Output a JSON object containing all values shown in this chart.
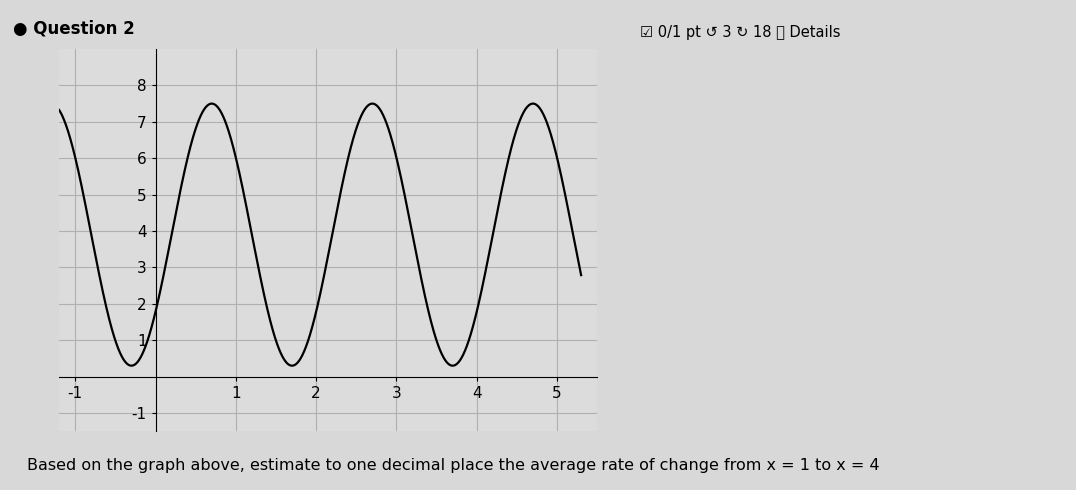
{
  "title": "Question 2",
  "question_text": "Based on the graph above, estimate to one decimal place the average rate of change from x = 1 to x = 4",
  "header_text": "☑ 0/1 pt ↺ 3 ↻ 18 ⓘ Details",
  "xlim": [
    -1.2,
    5.5
  ],
  "ylim": [
    -1.5,
    9
  ],
  "xticks": [
    -1,
    1,
    2,
    3,
    4,
    5
  ],
  "yticks": [
    -1,
    1,
    2,
    3,
    4,
    5,
    6,
    7,
    8
  ],
  "amplitude": 3.6,
  "midline": 3.9,
  "period": 2.0,
  "phase_shift": 0.2,
  "x_start": -1.2,
  "x_end": 5.3,
  "curve_color": "#000000",
  "curve_linewidth": 1.6,
  "grid_color": "#b0b0b0",
  "plot_bg_color": "#dcdcdc",
  "fig_bg_color": "#d8d8d8"
}
